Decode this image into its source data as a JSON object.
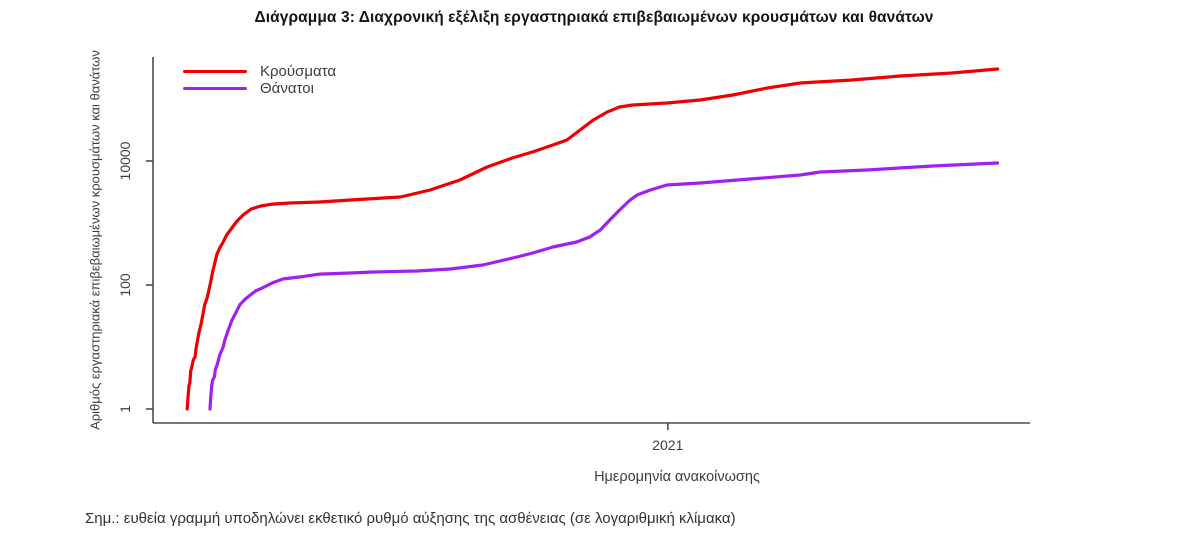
{
  "title": "Διάγραμμα 3: Διαχρονική εξέλιξη εργαστηριακά επιβεβαιωμένων κρουσμάτων και θανάτων",
  "note": "Σημ.: ευθεία γραμμή υποδηλώνει εκθετικό ρυθμό αύξησης της ασθένειας (σε λογαριθμική κλίμακα)",
  "legend": [
    {
      "label": "Κρούσματα",
      "color": "#ee0000"
    },
    {
      "label": "Θάνατοι",
      "color": "#a020f0"
    }
  ],
  "colors": {
    "cases_line": "#ee0000",
    "deaths_line": "#a020f0",
    "axis": "#4d4d4d",
    "text": "#3d3d3d"
  },
  "chart_data": {
    "type": "line",
    "title": "Διάγραμμα 3: Διαχρονική εξέλιξη εργαστηριακά επιβεβαιωμένων κρουσμάτων και θανάτων",
    "xlabel": "Ημερομηνία ανακοίνωσης",
    "ylabel": "Αριθμός εργαστηριακά επιβεβαιωμένων κρουσμάτων και θανάτων",
    "y_axis": {
      "scale": "log10",
      "ticks": [
        1,
        100,
        10000
      ],
      "tick_labels": [
        "1",
        "100",
        "10000"
      ],
      "range": [
        1,
        800000
      ]
    },
    "x_axis": {
      "ticks": [
        {
          "label": "2021",
          "position_frac": 0.587
        }
      ],
      "note": "x stored as fraction of axis width; only visible tick is 2021"
    },
    "grid": false,
    "legend_position": "top-left-inside",
    "series": [
      {
        "name": "Κρούσματα",
        "color": "#ee0000",
        "points": [
          [
            0.039,
            1
          ],
          [
            0.04,
            1.6
          ],
          [
            0.041,
            2.4
          ],
          [
            0.042,
            2.6
          ],
          [
            0.043,
            4.1
          ],
          [
            0.044,
            4.6
          ],
          [
            0.046,
            6.2
          ],
          [
            0.048,
            6.9
          ],
          [
            0.049,
            9.3
          ],
          [
            0.05,
            11
          ],
          [
            0.052,
            16
          ],
          [
            0.055,
            24
          ],
          [
            0.057,
            34
          ],
          [
            0.059,
            48
          ],
          [
            0.062,
            64
          ],
          [
            0.064,
            86
          ],
          [
            0.066,
            116
          ],
          [
            0.068,
            162
          ],
          [
            0.071,
            244
          ],
          [
            0.073,
            316
          ],
          [
            0.076,
            395
          ],
          [
            0.08,
            494
          ],
          [
            0.084,
            640
          ],
          [
            0.089,
            800
          ],
          [
            0.096,
            1080
          ],
          [
            0.103,
            1350
          ],
          [
            0.112,
            1680
          ],
          [
            0.123,
            1880
          ],
          [
            0.136,
            2020
          ],
          [
            0.156,
            2100
          ],
          [
            0.19,
            2180
          ],
          [
            0.225,
            2350
          ],
          [
            0.282,
            2630
          ],
          [
            0.316,
            3400
          ],
          [
            0.35,
            4940
          ],
          [
            0.381,
            8000
          ],
          [
            0.41,
            11200
          ],
          [
            0.433,
            14000
          ],
          [
            0.456,
            18100
          ],
          [
            0.472,
            21800
          ],
          [
            0.487,
            31600
          ],
          [
            0.502,
            45800
          ],
          [
            0.518,
            61700
          ],
          [
            0.532,
            74300
          ],
          [
            0.547,
            80000
          ],
          [
            0.586,
            86100
          ],
          [
            0.624,
            96400
          ],
          [
            0.661,
            116000
          ],
          [
            0.7,
            150000
          ],
          [
            0.738,
            181000
          ],
          [
            0.757,
            188000
          ],
          [
            0.795,
            202000
          ],
          [
            0.852,
            235000
          ],
          [
            0.909,
            262000
          ],
          [
            0.963,
            305000
          ]
        ]
      },
      {
        "name": "Θάνατοι",
        "color": "#a020f0",
        "points": [
          [
            0.065,
            1
          ],
          [
            0.066,
            1.7
          ],
          [
            0.067,
            2.4
          ],
          [
            0.068,
            2.9
          ],
          [
            0.07,
            3.3
          ],
          [
            0.071,
            4.3
          ],
          [
            0.073,
            5.1
          ],
          [
            0.074,
            5.7
          ],
          [
            0.076,
            7.4
          ],
          [
            0.08,
            10
          ],
          [
            0.082,
            13
          ],
          [
            0.086,
            19
          ],
          [
            0.09,
            27
          ],
          [
            0.095,
            37
          ],
          [
            0.099,
            48
          ],
          [
            0.105,
            59
          ],
          [
            0.111,
            69
          ],
          [
            0.117,
            80
          ],
          [
            0.125,
            90
          ],
          [
            0.136,
            108
          ],
          [
            0.148,
            125
          ],
          [
            0.168,
            135
          ],
          [
            0.19,
            150
          ],
          [
            0.225,
            156
          ],
          [
            0.251,
            162
          ],
          [
            0.301,
            168
          ],
          [
            0.339,
            181
          ],
          [
            0.376,
            210
          ],
          [
            0.415,
            283
          ],
          [
            0.433,
            328
          ],
          [
            0.456,
            410
          ],
          [
            0.483,
            494
          ],
          [
            0.498,
            594
          ],
          [
            0.51,
            771
          ],
          [
            0.521,
            1120
          ],
          [
            0.532,
            1620
          ],
          [
            0.544,
            2350
          ],
          [
            0.552,
            2830
          ],
          [
            0.567,
            3400
          ],
          [
            0.586,
            4100
          ],
          [
            0.624,
            4420
          ],
          [
            0.681,
            5130
          ],
          [
            0.738,
            5940
          ],
          [
            0.761,
            6650
          ],
          [
            0.814,
            7160
          ],
          [
            0.889,
            8300
          ],
          [
            0.963,
            9280
          ]
        ]
      }
    ]
  }
}
